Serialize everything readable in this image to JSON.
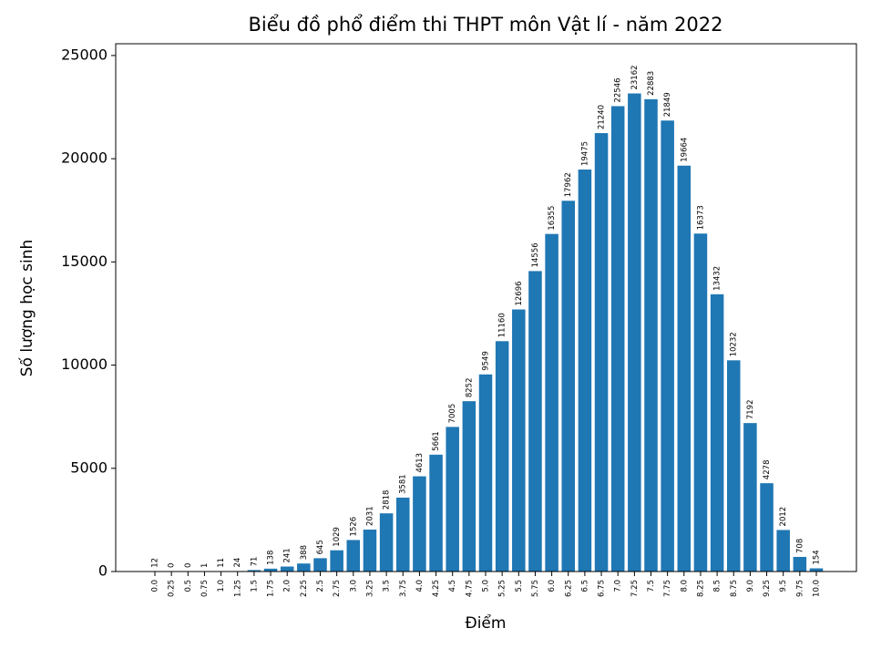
{
  "chart_data": {
    "type": "bar",
    "title": "Biểu đồ phổ điểm thi THPT môn Vật lí - năm 2022",
    "x_label": "Điểm",
    "y_label": "Số lượng học sinh",
    "categories": [
      "0.0",
      "0.25",
      "0.5",
      "0.75",
      "1.0",
      "1.25",
      "1.5",
      "1.75",
      "2.0",
      "2.25",
      "2.5",
      "2.75",
      "3.0",
      "3.25",
      "3.5",
      "3.75",
      "4.0",
      "4.25",
      "4.5",
      "4.75",
      "5.0",
      "5.25",
      "5.5",
      "5.75",
      "6.0",
      "6.25",
      "6.5",
      "6.75",
      "7.0",
      "7.25",
      "7.5",
      "7.75",
      "8.0",
      "8.25",
      "8.5",
      "8.75",
      "9.0",
      "9.25",
      "9.5",
      "9.75",
      "10.0"
    ],
    "values": [
      12,
      0,
      0,
      1,
      11,
      24,
      71,
      138,
      241,
      388,
      645,
      1029,
      1526,
      2031,
      2818,
      3581,
      4613,
      5661,
      7005,
      8252,
      9549,
      11160,
      12696,
      14556,
      16355,
      17962,
      19475,
      21240,
      22546,
      23162,
      22883,
      21849,
      19664,
      16373,
      13432,
      10232,
      7192,
      4278,
      2012,
      708,
      154
    ],
    "color": "#1f77b4",
    "ylim": [
      0,
      25570
    ],
    "yticks": [
      0,
      5000,
      10000,
      15000,
      20000,
      25000
    ],
    "grid": false
  }
}
